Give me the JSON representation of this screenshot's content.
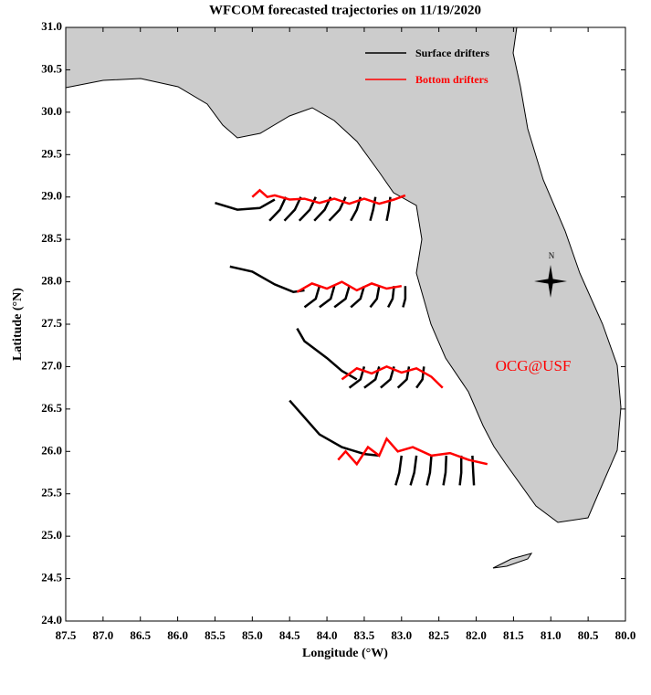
{
  "chart_data": {
    "type": "map",
    "title": "WFCOM forecasted trajectories on 11/19/2020",
    "x_label": "Longitude (°W)",
    "y_label": "Latitude (°N)",
    "annotation": "OCG@USF",
    "annotation_color": "#ff0000",
    "legend": "upper right",
    "xlim": [
      87.5,
      80.0
    ],
    "ylim": [
      24.0,
      31.0
    ],
    "xticks": [
      87.5,
      {
        "value": 87.0,
        "label": "87.0"
      },
      86.5,
      {
        "value": 86.0,
        "label": "86.0"
      },
      85.5,
      {
        "value": 85.0,
        "label": "85.0"
      },
      84.5,
      {
        "value": 84.0,
        "label": "84.0"
      },
      83.5,
      {
        "value": 83.0,
        "label": "83.0"
      },
      82.5,
      {
        "value": 82.0,
        "label": "82.0"
      },
      81.5,
      {
        "value": 81.0,
        "label": "81.0"
      },
      80.5,
      {
        "value": 80.0,
        "label": "80.0"
      }
    ],
    "yticks": [
      {
        "value": 24.0,
        "label": "24.0"
      },
      24.5,
      {
        "value": 25.0,
        "label": "25.0"
      },
      25.5,
      {
        "value": 26.0,
        "label": "26.0"
      },
      26.5,
      {
        "value": 27.0,
        "label": "27.0"
      },
      27.5,
      {
        "value": 28.0,
        "label": "28.0"
      },
      28.5,
      {
        "value": 29.0,
        "label": "29.0"
      },
      29.5,
      {
        "value": 30.0,
        "label": "30.0"
      },
      30.5,
      {
        "value": 31.0,
        "label": "31.0"
      }
    ],
    "series": [
      {
        "name": "Surface drifters",
        "color": "#000000",
        "tracks": [
          {
            "x": [
              85.5,
              85.2,
              84.9,
              84.7
            ],
            "y": [
              28.93,
              28.85,
              28.87,
              28.97
            ]
          },
          {
            "x": [
              84.55,
              84.63,
              84.77
            ],
            "y": [
              29.0,
              28.85,
              28.72
            ]
          },
          {
            "x": [
              84.35,
              84.43,
              84.57
            ],
            "y": [
              29.0,
              28.85,
              28.72
            ]
          },
          {
            "x": [
              84.15,
              84.23,
              84.37
            ],
            "y": [
              29.0,
              28.85,
              28.72
            ]
          },
          {
            "x": [
              83.95,
              84.03,
              84.17
            ],
            "y": [
              29.0,
              28.85,
              28.72
            ]
          },
          {
            "x": [
              83.75,
              83.83,
              83.97
            ],
            "y": [
              29.0,
              28.85,
              28.72
            ]
          },
          {
            "x": [
              83.55,
              83.6,
              83.68
            ],
            "y": [
              29.0,
              28.85,
              28.72
            ]
          },
          {
            "x": [
              83.35,
              83.38,
              83.42
            ],
            "y": [
              29.0,
              28.85,
              28.72
            ]
          },
          {
            "x": [
              83.15,
              83.17,
              83.2
            ],
            "y": [
              29.0,
              28.85,
              28.72
            ]
          },
          {
            "x": [
              85.3,
              85.0,
              84.7,
              84.45,
              84.3
            ],
            "y": [
              28.18,
              28.12,
              27.97,
              27.88,
              27.9
            ]
          },
          {
            "x": [
              84.1,
              84.15,
              84.3
            ],
            "y": [
              27.95,
              27.8,
              27.7
            ]
          },
          {
            "x": [
              83.9,
              83.95,
              84.1
            ],
            "y": [
              27.95,
              27.8,
              27.7
            ]
          },
          {
            "x": [
              83.7,
              83.75,
              83.9
            ],
            "y": [
              27.95,
              27.8,
              27.7
            ]
          },
          {
            "x": [
              83.5,
              83.55,
              83.68
            ],
            "y": [
              27.95,
              27.8,
              27.7
            ]
          },
          {
            "x": [
              83.3,
              83.33,
              83.42
            ],
            "y": [
              27.95,
              27.8,
              27.7
            ]
          },
          {
            "x": [
              83.1,
              83.12,
              83.18
            ],
            "y": [
              27.95,
              27.8,
              27.7
            ]
          },
          {
            "x": [
              82.95,
              82.95,
              82.98
            ],
            "y": [
              27.95,
              27.8,
              27.7
            ]
          },
          {
            "x": [
              84.4,
              84.3,
              84.0,
              83.8,
              83.6
            ],
            "y": [
              27.45,
              27.3,
              27.1,
              26.95,
              26.85
            ]
          },
          {
            "x": [
              83.5,
              83.55,
              83.7
            ],
            "y": [
              27.0,
              26.85,
              26.75
            ]
          },
          {
            "x": [
              83.3,
              83.35,
              83.5
            ],
            "y": [
              27.0,
              26.85,
              26.75
            ]
          },
          {
            "x": [
              83.1,
              83.15,
              83.28
            ],
            "y": [
              27.0,
              26.85,
              26.75
            ]
          },
          {
            "x": [
              82.9,
              82.93,
              83.05
            ],
            "y": [
              27.0,
              26.85,
              26.75
            ]
          },
          {
            "x": [
              82.7,
              82.72,
              82.8
            ],
            "y": [
              27.0,
              26.85,
              26.75
            ]
          },
          {
            "x": [
              84.5,
              84.3,
              84.1,
              83.8,
              83.5,
              83.3
            ],
            "y": [
              26.6,
              26.4,
              26.2,
              26.05,
              25.97,
              25.95
            ]
          },
          {
            "x": [
              83.0,
              83.03,
              83.08
            ],
            "y": [
              25.95,
              25.75,
              25.6
            ]
          },
          {
            "x": [
              82.8,
              82.83,
              82.88
            ],
            "y": [
              25.95,
              25.75,
              25.6
            ]
          },
          {
            "x": [
              82.6,
              82.62,
              82.66
            ],
            "y": [
              25.95,
              25.75,
              25.6
            ]
          },
          {
            "x": [
              82.4,
              82.41,
              82.44
            ],
            "y": [
              25.95,
              25.75,
              25.6
            ]
          },
          {
            "x": [
              82.2,
              82.2,
              82.22
            ],
            "y": [
              25.95,
              25.75,
              25.6
            ]
          },
          {
            "x": [
              82.05,
              82.04,
              82.03
            ],
            "y": [
              25.95,
              25.75,
              25.6
            ]
          }
        ]
      },
      {
        "name": "Bottom drifters",
        "color": "#ff0000",
        "tracks": [
          {
            "x": [
              85.0,
              84.9,
              84.8,
              84.7,
              84.5,
              84.3,
              84.1,
              83.9,
              83.7,
              83.5,
              83.3,
              83.1,
              82.95
            ],
            "y": [
              29.0,
              29.08,
              29.0,
              29.02,
              28.97,
              28.98,
              28.93,
              28.98,
              28.92,
              28.98,
              28.92,
              28.97,
              29.02
            ]
          },
          {
            "x": [
              84.4,
              84.2,
              84.0,
              83.8,
              83.6,
              83.4,
              83.2,
              83.0
            ],
            "y": [
              27.88,
              27.98,
              27.92,
              28.0,
              27.9,
              27.98,
              27.92,
              27.95
            ]
          },
          {
            "x": [
              83.8,
              83.6,
              83.4,
              83.2,
              83.0,
              82.8,
              82.6,
              82.45
            ],
            "y": [
              26.85,
              26.98,
              26.92,
              27.0,
              26.93,
              26.98,
              26.88,
              26.75
            ]
          },
          {
            "x": [
              83.85,
              83.75,
              83.6,
              83.45,
              83.3,
              83.2,
              83.05,
              82.85,
              82.6,
              82.35,
              82.1,
              81.85
            ],
            "y": [
              25.9,
              26.0,
              25.85,
              26.05,
              25.95,
              26.15,
              26.0,
              26.05,
              25.95,
              25.98,
              25.9,
              25.85
            ]
          }
        ]
      }
    ]
  }
}
